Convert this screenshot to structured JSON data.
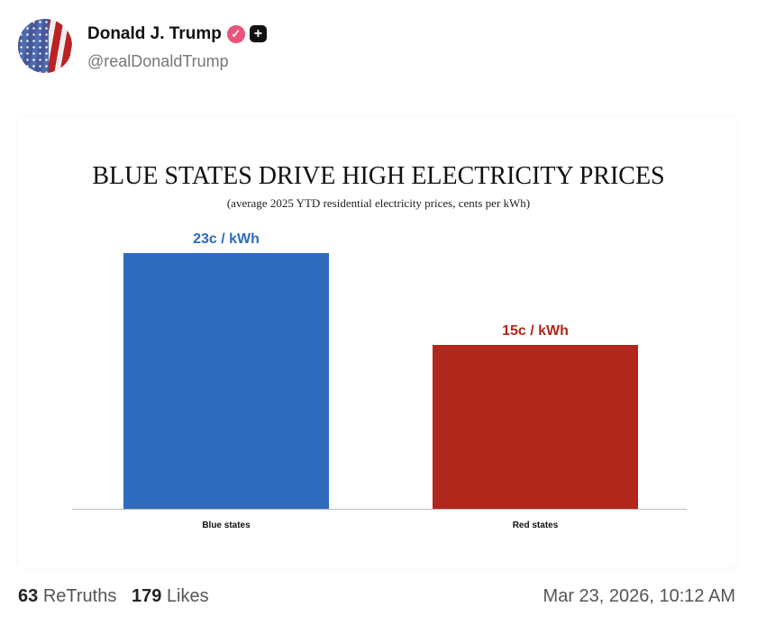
{
  "post": {
    "author": "Donald J. Trump",
    "handle": "@realDonaldTrump",
    "verified_icon": "verified-badge-icon",
    "plus_icon": "plus-icon",
    "badge_color": "#e8547a"
  },
  "footer": {
    "retruths_count": "63",
    "retruths_label": "ReTruths",
    "likes_count": "179",
    "likes_label": "Likes",
    "timestamp": "Mar 23, 2026, 10:12 AM"
  },
  "chart_data": {
    "type": "bar",
    "title": "BLUE STATES DRIVE HIGH ELECTRICITY PRICES",
    "subtitle": "(average 2025 YTD residential electricity prices, cents per kWh)",
    "categories": [
      "Blue states",
      "Red states"
    ],
    "values": [
      23,
      15
    ],
    "data_labels": [
      "23c  / kWh",
      "15c  / kWh"
    ],
    "colors": [
      "#2f6bbd",
      "#b1271b"
    ],
    "grid": false
  }
}
